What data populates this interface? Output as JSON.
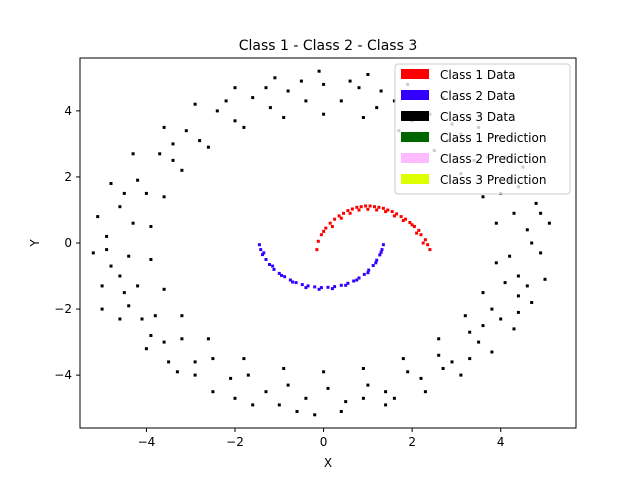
{
  "chart_data": {
    "type": "scatter",
    "title": "Class 1 - Class 2 - Class 3",
    "xlabel": "X",
    "ylabel": "Y",
    "xlim": [
      -5.5,
      5.7
    ],
    "ylim": [
      -5.6,
      5.6
    ],
    "xticks": [
      -4,
      -2,
      0,
      2,
      4
    ],
    "yticks": [
      -4,
      -2,
      0,
      2,
      4
    ],
    "xtick_labels": [
      "−4",
      "−2",
      "0",
      "2",
      "4"
    ],
    "ytick_labels": [
      "−4",
      "−2",
      "0",
      "2",
      "4"
    ],
    "grid": false,
    "legend_position": "top-right",
    "legend": [
      {
        "label": "Class 1 Data",
        "color": "#ff0000"
      },
      {
        "label": "Class 2 Data",
        "color": "#3300ff"
      },
      {
        "label": "Class 3 Data",
        "color": "#000000"
      },
      {
        "label": "Class 1 Prediction",
        "color": "#006600"
      },
      {
        "label": "Class 2 Prediction",
        "color": "#ffbbff"
      },
      {
        "label": "Class 3 Prediction",
        "color": "#ddff00"
      }
    ],
    "series": [
      {
        "name": "Class 1 Data",
        "color": "#ff0000",
        "shape": "upper half-moon arc, center (1, 0), radius 1.2, from x≈-0.2 to x≈2.4",
        "points": [
          [
            -0.15,
            -0.2
          ],
          [
            -0.12,
            0.05
          ],
          [
            -0.05,
            0.25
          ],
          [
            0.05,
            0.45
          ],
          [
            0.15,
            0.6
          ],
          [
            0.25,
            0.72
          ],
          [
            0.35,
            0.82
          ],
          [
            0.45,
            0.9
          ],
          [
            0.55,
            0.98
          ],
          [
            0.65,
            1.03
          ],
          [
            0.75,
            1.08
          ],
          [
            0.85,
            1.1
          ],
          [
            0.95,
            1.12
          ],
          [
            1.05,
            1.12
          ],
          [
            1.15,
            1.1
          ],
          [
            1.25,
            1.08
          ],
          [
            1.35,
            1.05
          ],
          [
            1.45,
            1.0
          ],
          [
            1.55,
            0.95
          ],
          [
            1.65,
            0.88
          ],
          [
            1.75,
            0.8
          ],
          [
            1.85,
            0.72
          ],
          [
            1.95,
            0.62
          ],
          [
            2.05,
            0.5
          ],
          [
            2.15,
            0.38
          ],
          [
            2.2,
            0.25
          ],
          [
            2.3,
            0.1
          ],
          [
            2.35,
            -0.05
          ],
          [
            2.4,
            -0.2
          ],
          [
            0.0,
            0.35
          ],
          [
            0.2,
            0.5
          ],
          [
            0.4,
            0.75
          ],
          [
            0.6,
            0.9
          ],
          [
            0.8,
            1.0
          ],
          [
            1.0,
            1.02
          ],
          [
            1.2,
            1.0
          ],
          [
            1.4,
            0.95
          ],
          [
            1.6,
            0.82
          ],
          [
            1.8,
            0.68
          ],
          [
            2.0,
            0.55
          ],
          [
            2.1,
            0.3
          ],
          [
            2.25,
            0.0
          ]
        ]
      },
      {
        "name": "Class 2 Data",
        "color": "#3300ff",
        "shape": "lower half-moon arc, center (0, 0), radius 1.3, from x≈-1.4 to x≈1.4",
        "points": [
          [
            -1.45,
            -0.05
          ],
          [
            -1.42,
            -0.2
          ],
          [
            -1.38,
            -0.35
          ],
          [
            -1.3,
            -0.5
          ],
          [
            -1.22,
            -0.65
          ],
          [
            -1.12,
            -0.8
          ],
          [
            -1.0,
            -0.92
          ],
          [
            -0.88,
            -1.02
          ],
          [
            -0.75,
            -1.12
          ],
          [
            -0.62,
            -1.2
          ],
          [
            -0.48,
            -1.26
          ],
          [
            -0.35,
            -1.3
          ],
          [
            -0.2,
            -1.33
          ],
          [
            -0.05,
            -1.35
          ],
          [
            0.1,
            -1.34
          ],
          [
            0.25,
            -1.32
          ],
          [
            0.4,
            -1.28
          ],
          [
            0.55,
            -1.22
          ],
          [
            0.68,
            -1.15
          ],
          [
            0.8,
            -1.06
          ],
          [
            0.92,
            -0.95
          ],
          [
            1.02,
            -0.82
          ],
          [
            1.12,
            -0.68
          ],
          [
            1.2,
            -0.52
          ],
          [
            1.27,
            -0.36
          ],
          [
            1.32,
            -0.2
          ],
          [
            1.35,
            -0.05
          ],
          [
            -1.35,
            -0.3
          ],
          [
            -1.15,
            -0.7
          ],
          [
            -0.95,
            -0.98
          ],
          [
            -0.7,
            -1.18
          ],
          [
            -0.4,
            -1.35
          ],
          [
            -0.1,
            -1.4
          ],
          [
            0.2,
            -1.38
          ],
          [
            0.5,
            -1.28
          ],
          [
            0.75,
            -1.12
          ],
          [
            1.0,
            -0.9
          ],
          [
            1.18,
            -0.6
          ],
          [
            1.3,
            -0.28
          ]
        ]
      },
      {
        "name": "Class 3 Data",
        "color": "#000000",
        "shape": "ring / annulus centered at origin, radius ≈3.8 to 5.2",
        "points": [
          [
            4.6,
            0.4
          ],
          [
            4.9,
            -0.3
          ],
          [
            4.4,
            -1.0
          ],
          [
            4.8,
            1.2
          ],
          [
            4.2,
            1.9
          ],
          [
            3.7,
            2.6
          ],
          [
            3.1,
            3.3
          ],
          [
            2.4,
            3.9
          ],
          [
            1.6,
            4.3
          ],
          [
            0.8,
            4.7
          ],
          [
            0.0,
            4.8
          ],
          [
            -0.8,
            4.6
          ],
          [
            -1.6,
            4.4
          ],
          [
            -2.4,
            4.0
          ],
          [
            -3.1,
            3.4
          ],
          [
            -3.7,
            2.7
          ],
          [
            -4.2,
            1.9
          ],
          [
            -4.6,
            1.1
          ],
          [
            -4.9,
            0.2
          ],
          [
            -4.8,
            -0.7
          ],
          [
            -4.5,
            -1.5
          ],
          [
            -4.1,
            -2.3
          ],
          [
            -3.6,
            -3.0
          ],
          [
            -2.9,
            -3.6
          ],
          [
            -2.1,
            -4.1
          ],
          [
            -1.3,
            -4.5
          ],
          [
            -0.4,
            -4.7
          ],
          [
            0.5,
            -4.8
          ],
          [
            1.4,
            -4.5
          ],
          [
            2.2,
            -4.1
          ],
          [
            2.9,
            -3.6
          ],
          [
            3.5,
            -3.0
          ],
          [
            4.0,
            -2.3
          ],
          [
            4.4,
            -1.6
          ],
          [
            4.7,
            0.0
          ],
          [
            5.1,
            0.6
          ],
          [
            5.0,
            -1.1
          ],
          [
            4.5,
            2.3
          ],
          [
            3.9,
            3.2
          ],
          [
            3.3,
            3.8
          ],
          [
            2.7,
            4.4
          ],
          [
            1.9,
            4.8
          ],
          [
            1.0,
            5.1
          ],
          [
            -0.1,
            5.2
          ],
          [
            -1.1,
            5.0
          ],
          [
            -2.0,
            4.7
          ],
          [
            -2.9,
            4.2
          ],
          [
            -3.6,
            3.5
          ],
          [
            -4.3,
            2.7
          ],
          [
            -4.8,
            1.8
          ],
          [
            -5.1,
            0.8
          ],
          [
            -5.2,
            -0.3
          ],
          [
            -5.0,
            -1.3
          ],
          [
            -4.6,
            -2.3
          ],
          [
            -4.0,
            -3.2
          ],
          [
            -3.3,
            -3.9
          ],
          [
            -2.5,
            -4.5
          ],
          [
            -1.6,
            -4.9
          ],
          [
            -0.6,
            -5.1
          ],
          [
            0.4,
            -5.1
          ],
          [
            1.4,
            -4.9
          ],
          [
            2.3,
            -4.5
          ],
          [
            3.1,
            -4.0
          ],
          [
            3.8,
            -3.3
          ],
          [
            4.3,
            -2.6
          ],
          [
            4.7,
            -1.8
          ],
          [
            3.9,
            0.6
          ],
          [
            3.9,
            -0.6
          ],
          [
            3.6,
            1.4
          ],
          [
            3.1,
            2.1
          ],
          [
            2.5,
            2.8
          ],
          [
            1.7,
            3.4
          ],
          [
            0.9,
            3.8
          ],
          [
            0.0,
            3.9
          ],
          [
            -0.9,
            3.8
          ],
          [
            -1.8,
            3.5
          ],
          [
            -2.6,
            2.9
          ],
          [
            -3.2,
            2.2
          ],
          [
            -3.6,
            1.4
          ],
          [
            -3.9,
            0.5
          ],
          [
            -3.9,
            -0.5
          ],
          [
            -3.6,
            -1.4
          ],
          [
            -3.2,
            -2.2
          ],
          [
            -2.6,
            -2.9
          ],
          [
            -1.8,
            -3.5
          ],
          [
            -0.9,
            -3.8
          ],
          [
            0.0,
            -3.9
          ],
          [
            0.9,
            -3.8
          ],
          [
            1.8,
            -3.5
          ],
          [
            2.6,
            -2.9
          ],
          [
            3.2,
            -2.2
          ],
          [
            3.6,
            -1.5
          ],
          [
            4.3,
            0.9
          ],
          [
            4.2,
            -0.4
          ],
          [
            4.0,
            1.5
          ],
          [
            3.4,
            2.5
          ],
          [
            2.8,
            3.1
          ],
          [
            2.0,
            3.7
          ],
          [
            1.2,
            4.1
          ],
          [
            0.4,
            4.3
          ],
          [
            -0.4,
            4.3
          ],
          [
            -1.2,
            4.1
          ],
          [
            -2.0,
            3.7
          ],
          [
            -2.8,
            3.1
          ],
          [
            -3.4,
            2.5
          ],
          [
            -4.0,
            1.5
          ],
          [
            -4.3,
            0.6
          ],
          [
            -4.4,
            -0.4
          ],
          [
            -4.2,
            -1.3
          ],
          [
            -3.8,
            -2.2
          ],
          [
            -3.2,
            -2.9
          ],
          [
            -2.5,
            -3.5
          ],
          [
            -1.7,
            -4.0
          ],
          [
            -0.8,
            -4.3
          ],
          [
            0.1,
            -4.4
          ],
          [
            1.0,
            -4.3
          ],
          [
            1.9,
            -3.9
          ],
          [
            2.6,
            -3.4
          ],
          [
            3.3,
            -2.7
          ],
          [
            3.8,
            -2.0
          ],
          [
            4.1,
            -1.2
          ],
          [
            -2.9,
            -4.0
          ],
          [
            -3.9,
            -2.8
          ],
          [
            -4.4,
            -1.9
          ],
          [
            -1.0,
            -4.9
          ],
          [
            0.9,
            -4.7
          ],
          [
            2.7,
            -3.8
          ],
          [
            3.6,
            -2.5
          ],
          [
            4.4,
            -2.1
          ],
          [
            4.9,
            0.9
          ],
          [
            4.1,
            2.6
          ],
          [
            2.9,
            3.6
          ],
          [
            1.3,
            4.6
          ],
          [
            -0.5,
            4.9
          ],
          [
            -2.2,
            4.3
          ],
          [
            -3.4,
            3.0
          ],
          [
            -4.5,
            1.5
          ],
          [
            -4.9,
            -0.2
          ],
          [
            -5.0,
            -2.0
          ],
          [
            -1.3,
            4.7
          ],
          [
            0.6,
            4.9
          ],
          [
            2.1,
            4.4
          ],
          [
            3.5,
            3.5
          ],
          [
            4.4,
            1.7
          ],
          [
            4.6,
            -1.3
          ],
          [
            3.3,
            -3.5
          ],
          [
            1.6,
            -4.7
          ],
          [
            -0.2,
            -5.2
          ],
          [
            -2.0,
            -4.7
          ],
          [
            -3.5,
            -3.6
          ],
          [
            -4.6,
            -1.0
          ]
        ]
      }
    ]
  }
}
